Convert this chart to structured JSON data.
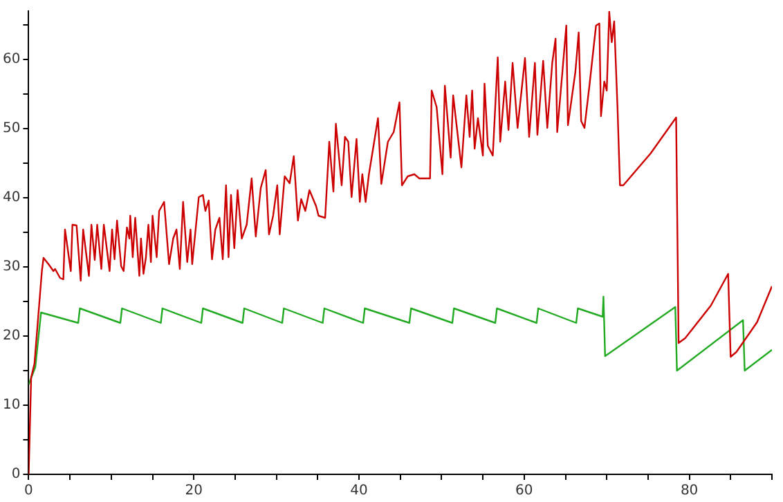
{
  "chart_data": {
    "type": "line",
    "legend": false,
    "grid": false,
    "marker": "none",
    "line_style": "solid",
    "xlim": [
      0,
      90
    ],
    "ylim": [
      0,
      67
    ],
    "xticks": [
      0,
      {
        "value": 5,
        "label": null
      },
      {
        "value": 10,
        "label": null
      },
      {
        "value": 15,
        "label": null
      },
      20,
      {
        "value": 25,
        "label": null
      },
      {
        "value": 30,
        "label": null
      },
      {
        "value": 35,
        "label": null
      },
      40,
      {
        "value": 45,
        "label": null
      },
      {
        "value": 50,
        "label": null
      },
      {
        "value": 55,
        "label": null
      },
      60,
      {
        "value": 65,
        "label": null
      },
      {
        "value": 70,
        "label": null
      },
      {
        "value": 75,
        "label": null
      },
      80,
      {
        "value": 85,
        "label": null
      },
      {
        "value": 90,
        "label": null
      }
    ],
    "yticks": [
      0,
      {
        "value": 5,
        "label": null
      },
      10,
      {
        "value": 15,
        "label": null
      },
      20,
      {
        "value": 25,
        "label": null
      },
      30,
      {
        "value": 35,
        "label": null
      },
      40,
      {
        "value": 45,
        "label": null
      },
      50,
      {
        "value": 55,
        "label": null
      },
      60,
      {
        "value": 65,
        "label": null
      }
    ],
    "series": [
      {
        "color": "#cc0000",
        "x": [
          0,
          0.3,
          0.7,
          1.6,
          1.8,
          2.4,
          3.0,
          3.2,
          3.8,
          4.2,
          4.4,
          5.1,
          5.3,
          5.8,
          6.3,
          6.6,
          7.3,
          7.6,
          8.0,
          8.3,
          8.8,
          9.1,
          9.8,
          10.1,
          10.4,
          10.7,
          11.2,
          11.5,
          11.9,
          12.2,
          12.3,
          12.6,
          12.9,
          13.4,
          13.6,
          13.9,
          14.2,
          14.5,
          14.8,
          15.0,
          15.5,
          15.8,
          16.4,
          17.0,
          17.5,
          17.9,
          18.3,
          18.7,
          19.2,
          19.6,
          19.8,
          20.6,
          21.1,
          21.4,
          21.8,
          22.2,
          22.6,
          23.1,
          23.5,
          23.9,
          24.2,
          24.5,
          24.9,
          25.3,
          25.8,
          26.4,
          27.0,
          27.5,
          28.1,
          28.7,
          29.1,
          29.6,
          30.1,
          30.4,
          31.0,
          31.6,
          32.1,
          32.6,
          33.0,
          33.5,
          34.0,
          34.8,
          35.1,
          35.9,
          36.4,
          36.9,
          37.2,
          37.9,
          38.3,
          38.7,
          39.1,
          39.7,
          40.1,
          40.4,
          40.8,
          41.2,
          42.3,
          42.7,
          43.5,
          44.2,
          44.9,
          45.2,
          45.9,
          46.7,
          47.3,
          48.6,
          48.8,
          49.4,
          50.1,
          50.4,
          51.1,
          51.4,
          52.4,
          53.0,
          53.4,
          53.7,
          54.0,
          54.4,
          55.0,
          55.2,
          55.6,
          56.2,
          56.8,
          57.1,
          57.7,
          58.1,
          58.6,
          59.2,
          60.1,
          60.6,
          61.3,
          61.6,
          62.3,
          62.8,
          63.4,
          63.8,
          64.0,
          64.6,
          65.1,
          65.3,
          66.2,
          66.6,
          66.9,
          67.3,
          67.9,
          68.7,
          69.1,
          69.3,
          69.7,
          70.0,
          70.3,
          70.6,
          70.9,
          71.3,
          71.6,
          72.0,
          75.3,
          78.4,
          78.7,
          79.5,
          82.6,
          84.7,
          85.0,
          85.7,
          88.2,
          90
        ],
        "values": [
          0,
          14,
          16,
          29.4,
          31.3,
          30.4,
          29.4,
          29.7,
          28.4,
          28.2,
          35.4,
          29.4,
          36.1,
          36,
          28,
          35.4,
          28.7,
          36.1,
          31,
          36.1,
          29.7,
          36.1,
          29.4,
          35.4,
          31.1,
          36.7,
          30.1,
          29.4,
          35.7,
          34.1,
          37.4,
          31.4,
          37.1,
          28.7,
          34.1,
          29,
          31.4,
          36.1,
          30.7,
          37.4,
          31.4,
          38.1,
          39.4,
          30.4,
          34.1,
          35.4,
          29.7,
          39.4,
          30.7,
          35.4,
          30.4,
          40.1,
          40.4,
          38.1,
          39.6,
          31.1,
          35.4,
          37.1,
          31.1,
          41.8,
          31.4,
          40.4,
          32.7,
          41.1,
          34.1,
          36.1,
          42.8,
          34.4,
          41.4,
          44,
          34.7,
          37.4,
          41.8,
          34.7,
          43.1,
          42.1,
          46,
          36.7,
          39.8,
          38.1,
          41.1,
          38.8,
          37.4,
          37.1,
          48.1,
          40.9,
          50.7,
          41.8,
          48.8,
          48.1,
          40.1,
          48.5,
          39.4,
          43.4,
          39.4,
          43.4,
          51.5,
          42,
          48.1,
          49.5,
          53.8,
          41.8,
          43.1,
          43.4,
          42.8,
          42.8,
          55.5,
          53.1,
          43.4,
          56.2,
          45.8,
          54.8,
          44.4,
          54.8,
          48.8,
          55.5,
          47.1,
          51.5,
          46.1,
          56.5,
          47.5,
          46.1,
          60.3,
          48.1,
          56.8,
          49.8,
          59.5,
          50.1,
          60.2,
          48.8,
          59.5,
          49.1,
          59.8,
          50.1,
          59.5,
          63,
          49.5,
          57.8,
          64.9,
          50.5,
          58.2,
          63.9,
          51.1,
          50.1,
          56.2,
          64.9,
          65.2,
          51.8,
          56.8,
          55.5,
          66.9,
          62.5,
          65.5,
          53.1,
          41.8,
          41.8,
          46.4,
          51.6,
          19,
          19.7,
          24.4,
          29,
          17,
          17.7,
          22,
          27.2
        ]
      },
      {
        "color": "#22aa22",
        "x": [
          0,
          0.8,
          1.5,
          6.0,
          6.2,
          11.1,
          11.3,
          16.0,
          16.2,
          20.9,
          21.1,
          25.9,
          26.1,
          30.7,
          30.9,
          35.6,
          35.8,
          40.5,
          40.7,
          46.1,
          46.3,
          51.3,
          51.5,
          56.5,
          56.7,
          61.5,
          61.7,
          66.3,
          66.5,
          69.5,
          69.6,
          69.8,
          78.3,
          78.5,
          86.5,
          86.7,
          90
        ],
        "values": [
          13,
          15.5,
          23.4,
          21.9,
          24.0,
          21.9,
          24.0,
          21.9,
          24.0,
          21.9,
          24.0,
          21.9,
          24.0,
          21.9,
          24.0,
          21.9,
          24.0,
          21.9,
          24.0,
          21.9,
          24.0,
          21.9,
          24.0,
          21.9,
          24.0,
          21.9,
          24.0,
          21.9,
          24.0,
          22.8,
          25.7,
          17.1,
          24.2,
          15.0,
          22.3,
          15.0,
          18.0
        ]
      }
    ]
  }
}
